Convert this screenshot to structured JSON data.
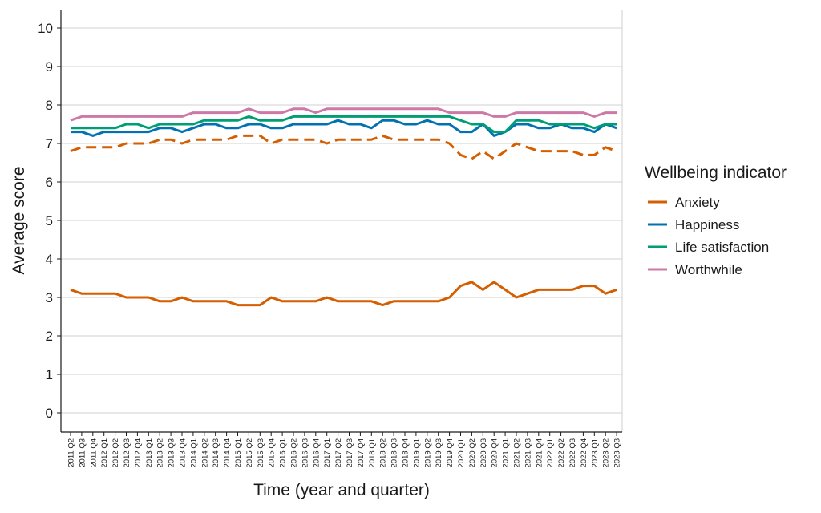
{
  "chart_data": {
    "type": "line",
    "xlabel": "Time (year and quarter)",
    "ylabel": "Average score",
    "ylim": [
      0,
      10.5
    ],
    "yticks": [
      0,
      1,
      2,
      3,
      4,
      5,
      6,
      7,
      8,
      9,
      10
    ],
    "grid": "horizontal",
    "legend": {
      "title": "Wellbeing indicator",
      "placement": "right",
      "entries": [
        "Anxiety",
        "Happiness",
        "Life satisfaction",
        "Worthwhile"
      ]
    },
    "categories": [
      "2011 Q2",
      "2011 Q3",
      "2011 Q4",
      "2012 Q1",
      "2012 Q2",
      "2012 Q3",
      "2012 Q4",
      "2013 Q1",
      "2013 Q2",
      "2013 Q3",
      "2013 Q4",
      "2014 Q1",
      "2014 Q2",
      "2014 Q3",
      "2014 Q4",
      "2015 Q1",
      "2015 Q2",
      "2015 Q3",
      "2015 Q4",
      "2016 Q1",
      "2016 Q2",
      "2016 Q3",
      "2016 Q4",
      "2017 Q1",
      "2017 Q2",
      "2017 Q3",
      "2017 Q4",
      "2018 Q1",
      "2018 Q2",
      "2018 Q3",
      "2018 Q4",
      "2019 Q1",
      "2019 Q2",
      "2019 Q3",
      "2019 Q4",
      "2020 Q1",
      "2020 Q2",
      "2020 Q3",
      "2020 Q4",
      "2021 Q1",
      "2021 Q2",
      "2021 Q3",
      "2021 Q4",
      "2022 Q1",
      "2022 Q2",
      "2022 Q3",
      "2022 Q4",
      "2023 Q1",
      "2023 Q2",
      "2023 Q3"
    ],
    "series": [
      {
        "name": "Anxiety",
        "color": "#D55E00",
        "dash": "solid",
        "values": [
          3.2,
          3.1,
          3.1,
          3.1,
          3.1,
          3.0,
          3.0,
          3.0,
          2.9,
          2.9,
          3.0,
          2.9,
          2.9,
          2.9,
          2.9,
          2.8,
          2.8,
          2.8,
          3.0,
          2.9,
          2.9,
          2.9,
          2.9,
          3.0,
          2.9,
          2.9,
          2.9,
          2.9,
          2.8,
          2.9,
          2.9,
          2.9,
          2.9,
          2.9,
          3.0,
          3.3,
          3.4,
          3.2,
          3.4,
          3.2,
          3.0,
          3.1,
          3.2,
          3.2,
          3.2,
          3.2,
          3.3,
          3.3,
          3.1,
          3.2
        ]
      },
      {
        "name": "Anxiety",
        "color": "#D55E00",
        "dash": "dashed",
        "values": [
          6.8,
          6.9,
          6.9,
          6.9,
          6.9,
          7.0,
          7.0,
          7.0,
          7.1,
          7.1,
          7.0,
          7.1,
          7.1,
          7.1,
          7.1,
          7.2,
          7.2,
          7.2,
          7.0,
          7.1,
          7.1,
          7.1,
          7.1,
          7.0,
          7.1,
          7.1,
          7.1,
          7.1,
          7.2,
          7.1,
          7.1,
          7.1,
          7.1,
          7.1,
          7.0,
          6.7,
          6.6,
          6.8,
          6.6,
          6.8,
          7.0,
          6.9,
          6.8,
          6.8,
          6.8,
          6.8,
          6.7,
          6.7,
          6.9,
          6.8
        ]
      },
      {
        "name": "Happiness",
        "color": "#0072B2",
        "dash": "solid",
        "values": [
          7.3,
          7.3,
          7.2,
          7.3,
          7.3,
          7.3,
          7.3,
          7.3,
          7.4,
          7.4,
          7.3,
          7.4,
          7.5,
          7.5,
          7.4,
          7.4,
          7.5,
          7.5,
          7.4,
          7.4,
          7.5,
          7.5,
          7.5,
          7.5,
          7.6,
          7.5,
          7.5,
          7.4,
          7.6,
          7.6,
          7.5,
          7.5,
          7.6,
          7.5,
          7.5,
          7.3,
          7.3,
          7.5,
          7.2,
          7.3,
          7.5,
          7.5,
          7.4,
          7.4,
          7.5,
          7.4,
          7.4,
          7.3,
          7.5,
          7.4
        ]
      },
      {
        "name": "Life satisfaction",
        "color": "#009E73",
        "dash": "solid",
        "values": [
          7.4,
          7.4,
          7.4,
          7.4,
          7.4,
          7.5,
          7.5,
          7.4,
          7.5,
          7.5,
          7.5,
          7.5,
          7.6,
          7.6,
          7.6,
          7.6,
          7.7,
          7.6,
          7.6,
          7.6,
          7.7,
          7.7,
          7.7,
          7.7,
          7.7,
          7.7,
          7.7,
          7.7,
          7.7,
          7.7,
          7.7,
          7.7,
          7.7,
          7.7,
          7.7,
          7.6,
          7.5,
          7.5,
          7.3,
          7.3,
          7.6,
          7.6,
          7.6,
          7.5,
          7.5,
          7.5,
          7.5,
          7.4,
          7.5,
          7.5
        ]
      },
      {
        "name": "Worthwhile",
        "color": "#CC79A7",
        "dash": "solid",
        "values": [
          7.6,
          7.7,
          7.7,
          7.7,
          7.7,
          7.7,
          7.7,
          7.7,
          7.7,
          7.7,
          7.7,
          7.8,
          7.8,
          7.8,
          7.8,
          7.8,
          7.9,
          7.8,
          7.8,
          7.8,
          7.9,
          7.9,
          7.8,
          7.9,
          7.9,
          7.9,
          7.9,
          7.9,
          7.9,
          7.9,
          7.9,
          7.9,
          7.9,
          7.9,
          7.8,
          7.8,
          7.8,
          7.8,
          7.7,
          7.7,
          7.8,
          7.8,
          7.8,
          7.8,
          7.8,
          7.8,
          7.8,
          7.7,
          7.8,
          7.8
        ]
      }
    ]
  }
}
